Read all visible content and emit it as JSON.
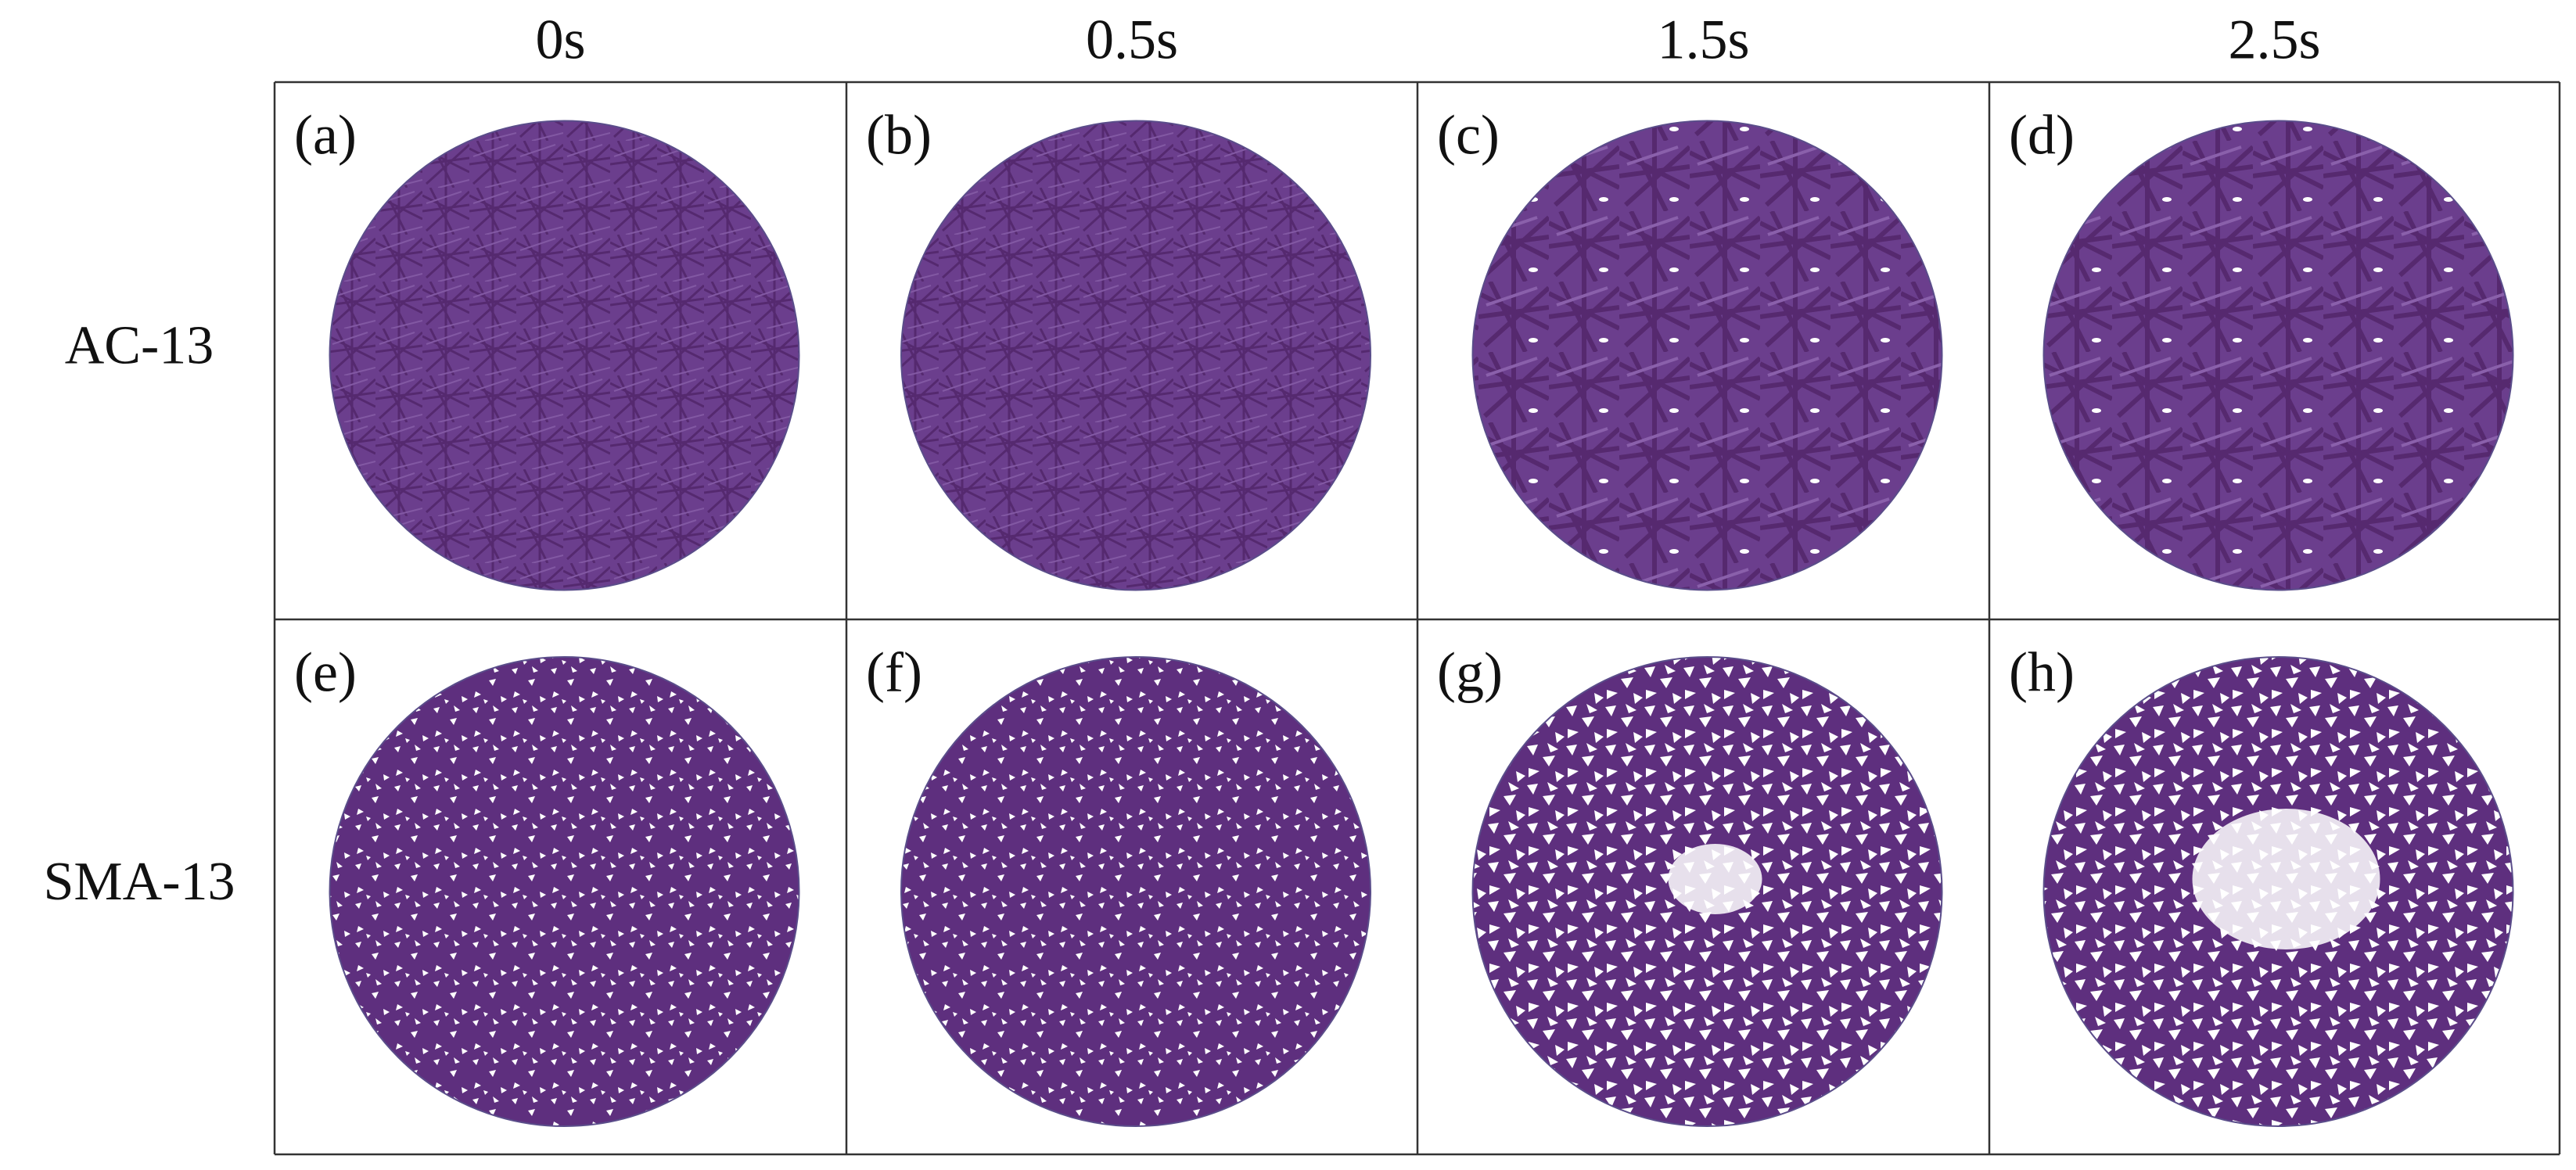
{
  "columns": [
    "0s",
    "0.5s",
    "1.5s",
    "2.5s"
  ],
  "rows": [
    {
      "label": "AC-13",
      "panels": [
        "(a)",
        "(b)",
        "(c)",
        "(d)"
      ]
    },
    {
      "label": "SMA-13",
      "panels": [
        "(e)",
        "(f)",
        "(g)",
        "(h)"
      ]
    }
  ]
}
